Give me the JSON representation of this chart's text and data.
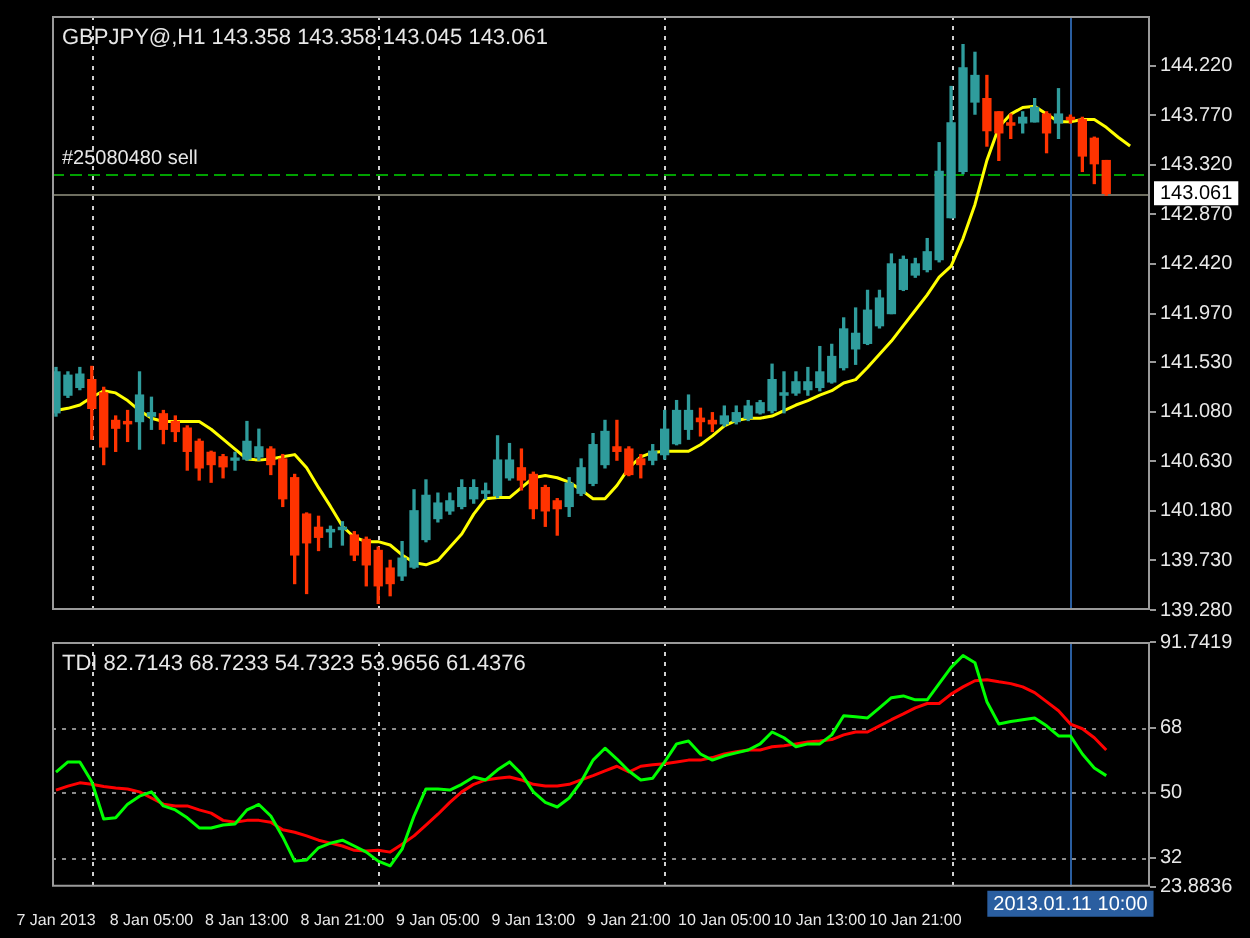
{
  "chart_data": [
    {
      "type": "candlestick",
      "title": "GBPJPY@,H1 143.358 143.358 143.045 143.061",
      "tick_labels": "y",
      "x": [
        "2013-01-07T21:00",
        "2013-01-07T22:00",
        "2013-01-07T23:00",
        "2013-01-08T00:00",
        "2013-01-08T01:00",
        "2013-01-08T02:00",
        "2013-01-08T03:00",
        "2013-01-08T04:00",
        "2013-01-08T05:00",
        "2013-01-08T06:00",
        "2013-01-08T07:00",
        "2013-01-08T08:00",
        "2013-01-08T09:00",
        "2013-01-08T10:00",
        "2013-01-08T11:00",
        "2013-01-08T12:00",
        "2013-01-08T13:00",
        "2013-01-08T14:00",
        "2013-01-08T15:00",
        "2013-01-08T16:00",
        "2013-01-08T17:00",
        "2013-01-08T18:00",
        "2013-01-08T19:00",
        "2013-01-08T20:00",
        "2013-01-08T21:00",
        "2013-01-08T22:00",
        "2013-01-08T23:00",
        "2013-01-09T00:00",
        "2013-01-09T01:00",
        "2013-01-09T02:00",
        "2013-01-09T03:00",
        "2013-01-09T04:00",
        "2013-01-09T05:00",
        "2013-01-09T06:00",
        "2013-01-09T07:00",
        "2013-01-09T08:00",
        "2013-01-09T09:00",
        "2013-01-09T10:00",
        "2013-01-09T11:00",
        "2013-01-09T12:00",
        "2013-01-09T13:00",
        "2013-01-09T14:00",
        "2013-01-09T15:00",
        "2013-01-09T16:00",
        "2013-01-09T17:00",
        "2013-01-09T18:00",
        "2013-01-09T19:00",
        "2013-01-09T20:00",
        "2013-01-09T21:00",
        "2013-01-09T22:00",
        "2013-01-09T23:00",
        "2013-01-10T00:00",
        "2013-01-10T01:00",
        "2013-01-10T02:00",
        "2013-01-10T03:00",
        "2013-01-10T04:00",
        "2013-01-10T05:00",
        "2013-01-10T06:00",
        "2013-01-10T07:00",
        "2013-01-10T08:00",
        "2013-01-10T09:00",
        "2013-01-10T10:00",
        "2013-01-10T11:00",
        "2013-01-10T12:00",
        "2013-01-10T13:00",
        "2013-01-10T14:00",
        "2013-01-10T15:00",
        "2013-01-10T16:00",
        "2013-01-10T17:00",
        "2013-01-10T18:00",
        "2013-01-10T19:00",
        "2013-01-10T20:00",
        "2013-01-10T21:00",
        "2013-01-10T22:00",
        "2013-01-10T23:00",
        "2013-01-11T00:00",
        "2013-01-11T01:00",
        "2013-01-11T02:00",
        "2013-01-11T03:00",
        "2013-01-11T04:00",
        "2013-01-11T05:00",
        "2013-01-11T06:00",
        "2013-01-11T07:00",
        "2013-01-11T08:00",
        "2013-01-11T09:00",
        "2013-01-11T10:00",
        "2013-01-11T11:00",
        "2013-01-11T12:00",
        "2013-01-11T13:00"
      ],
      "xlim": [
        "2013-01-07T20:40",
        "2013-01-11T16:40"
      ],
      "ylim": [
        139.28,
        144.67
      ],
      "yticks": [
        {
          "value": 139.28,
          "label": "139.280"
        },
        {
          "value": 139.73,
          "label": "139.730"
        },
        {
          "value": 140.18,
          "label": "140.180"
        },
        {
          "value": 140.63,
          "label": "140.630"
        },
        {
          "value": 141.08,
          "label": "141.080"
        },
        {
          "value": 141.53,
          "label": "141.530"
        },
        {
          "value": 141.97,
          "label": "141.970"
        },
        {
          "value": 142.42,
          "label": "142.420"
        },
        {
          "value": 142.87,
          "label": "142.870"
        },
        {
          "value": 143.32,
          "label": "143.320"
        },
        {
          "value": 143.77,
          "label": "143.770"
        },
        {
          "value": 144.22,
          "label": "144.220"
        }
      ],
      "ohlc": [
        [
          141.07,
          141.48,
          141.04,
          141.44
        ],
        [
          141.23,
          141.44,
          141.21,
          141.41
        ],
        [
          141.3,
          141.48,
          141.28,
          141.42
        ],
        [
          141.37,
          141.49,
          140.83,
          141.11
        ],
        [
          141.25,
          141.3,
          140.6,
          140.76
        ],
        [
          141.0,
          141.04,
          140.72,
          140.93
        ],
        [
          140.99,
          141.09,
          140.81,
          140.97
        ],
        [
          140.99,
          141.44,
          140.74,
          141.23
        ],
        [
          141.04,
          141.21,
          140.92,
          141.07
        ],
        [
          141.06,
          141.09,
          140.79,
          140.92
        ],
        [
          140.99,
          141.04,
          140.81,
          140.9
        ],
        [
          140.93,
          140.95,
          140.55,
          140.72
        ],
        [
          140.81,
          140.83,
          140.46,
          140.57
        ],
        [
          140.71,
          140.72,
          140.44,
          140.6
        ],
        [
          140.67,
          140.69,
          140.48,
          140.58
        ],
        [
          140.64,
          140.71,
          140.55,
          140.65
        ],
        [
          140.65,
          140.99,
          140.64,
          140.81
        ],
        [
          140.67,
          140.92,
          140.64,
          140.76
        ],
        [
          140.74,
          140.76,
          140.51,
          140.6
        ],
        [
          140.65,
          140.69,
          140.22,
          140.29
        ],
        [
          140.48,
          140.51,
          139.52,
          139.78
        ],
        [
          140.15,
          140.16,
          139.43,
          139.89
        ],
        [
          140.03,
          140.13,
          139.82,
          139.94
        ],
        [
          139.99,
          140.04,
          139.85,
          140.01
        ],
        [
          140.01,
          140.08,
          139.87,
          140.03
        ],
        [
          139.96,
          139.99,
          139.73,
          139.78
        ],
        [
          139.92,
          139.94,
          139.5,
          139.69
        ],
        [
          139.82,
          139.85,
          139.34,
          139.5
        ],
        [
          139.66,
          139.73,
          139.41,
          139.52
        ],
        [
          139.59,
          139.9,
          139.55,
          139.75
        ],
        [
          139.67,
          140.37,
          139.66,
          140.18
        ],
        [
          139.92,
          140.46,
          139.9,
          140.32
        ],
        [
          140.11,
          140.34,
          140.08,
          140.25
        ],
        [
          140.18,
          140.34,
          140.15,
          140.27
        ],
        [
          140.22,
          140.46,
          140.2,
          140.39
        ],
        [
          140.29,
          140.46,
          140.25,
          140.39
        ],
        [
          140.34,
          140.43,
          140.29,
          140.36
        ],
        [
          140.32,
          140.86,
          140.3,
          140.64
        ],
        [
          140.48,
          140.79,
          140.46,
          140.64
        ],
        [
          140.57,
          140.74,
          140.37,
          140.46
        ],
        [
          140.51,
          140.53,
          140.11,
          140.2
        ],
        [
          140.39,
          140.41,
          140.04,
          140.18
        ],
        [
          140.27,
          140.29,
          139.96,
          140.2
        ],
        [
          140.22,
          140.48,
          140.13,
          140.43
        ],
        [
          140.34,
          140.65,
          140.32,
          140.57
        ],
        [
          140.43,
          140.88,
          140.41,
          140.78
        ],
        [
          140.6,
          141.0,
          140.57,
          140.9
        ],
        [
          140.76,
          141.0,
          140.64,
          140.72
        ],
        [
          140.74,
          140.76,
          140.5,
          140.51
        ],
        [
          140.65,
          140.69,
          140.48,
          140.6
        ],
        [
          140.64,
          140.78,
          140.6,
          140.72
        ],
        [
          140.69,
          141.09,
          140.65,
          140.92
        ],
        [
          140.79,
          141.18,
          140.78,
          141.09
        ],
        [
          140.92,
          141.23,
          140.83,
          141.09
        ],
        [
          141.02,
          141.11,
          140.86,
          140.99
        ],
        [
          141.0,
          141.07,
          140.9,
          140.97
        ],
        [
          140.97,
          141.13,
          140.95,
          141.04
        ],
        [
          140.99,
          141.13,
          140.97,
          141.07
        ],
        [
          141.02,
          141.18,
          141.0,
          141.13
        ],
        [
          141.07,
          141.18,
          141.06,
          141.16
        ],
        [
          141.09,
          141.51,
          141.07,
          141.37
        ],
        [
          141.23,
          141.44,
          141.07,
          141.25
        ],
        [
          141.25,
          141.44,
          141.23,
          141.35
        ],
        [
          141.28,
          141.48,
          141.23,
          141.35
        ],
        [
          141.3,
          141.67,
          141.27,
          141.44
        ],
        [
          141.35,
          141.69,
          141.34,
          141.58
        ],
        [
          141.48,
          141.93,
          141.46,
          141.83
        ],
        [
          141.65,
          142.02,
          141.51,
          141.79
        ],
        [
          141.7,
          142.18,
          141.69,
          142.0
        ],
        [
          141.86,
          142.18,
          141.84,
          142.11
        ],
        [
          141.97,
          142.51,
          141.97,
          142.42
        ],
        [
          142.19,
          142.49,
          142.18,
          142.46
        ],
        [
          142.32,
          142.47,
          142.3,
          142.42
        ],
        [
          142.37,
          142.65,
          142.35,
          142.53
        ],
        [
          142.46,
          143.52,
          142.44,
          143.26
        ],
        [
          142.84,
          144.03,
          142.84,
          143.7
        ],
        [
          143.26,
          144.41,
          143.24,
          144.2
        ],
        [
          143.89,
          144.34,
          143.78,
          144.13
        ],
        [
          143.92,
          144.13,
          143.49,
          143.63
        ],
        [
          143.8,
          143.8,
          143.36,
          143.61
        ],
        [
          143.7,
          143.78,
          143.56,
          143.68
        ],
        [
          143.7,
          143.8,
          143.61,
          143.75
        ],
        [
          143.71,
          143.92,
          143.71,
          143.84
        ],
        [
          143.78,
          143.8,
          143.43,
          143.61
        ],
        [
          143.7,
          144.01,
          143.56,
          143.78
        ],
        [
          143.75,
          143.77,
          143.7,
          143.73
        ],
        [
          143.73,
          143.75,
          143.26,
          143.4
        ],
        [
          143.56,
          143.57,
          143.15,
          143.33
        ],
        [
          143.358,
          143.358,
          143.045,
          143.061
        ]
      ],
      "colors": [
        "#2f9c9c",
        "#2f9c9c",
        "#2f9c9c",
        "#ff3300",
        "#ff3300",
        "#ff3300",
        "#ff3300",
        "#2f9c9c",
        "#2f9c9c",
        "#ff3300",
        "#ff3300",
        "#ff3300",
        "#ff3300",
        "#ff3300",
        "#ff3300",
        "#2f9c9c",
        "#2f9c9c",
        "#2f9c9c",
        "#ff3300",
        "#ff3300",
        "#ff3300",
        "#ff3300",
        "#ff3300",
        "#2f9c9c",
        "#2f9c9c",
        "#ff3300",
        "#ff3300",
        "#ff3300",
        "#ff3300",
        "#2f9c9c",
        "#2f9c9c",
        "#2f9c9c",
        "#2f9c9c",
        "#2f9c9c",
        "#2f9c9c",
        "#2f9c9c",
        "#2f9c9c",
        "#2f9c9c",
        "#2f9c9c",
        "#ff3300",
        "#ff3300",
        "#ff3300",
        "#ff3300",
        "#2f9c9c",
        "#2f9c9c",
        "#2f9c9c",
        "#2f9c9c",
        "#ff3300",
        "#ff3300",
        "#ff3300",
        "#2f9c9c",
        "#2f9c9c",
        "#2f9c9c",
        "#2f9c9c",
        "#ff3300",
        "#ff3300",
        "#2f9c9c",
        "#2f9c9c",
        "#2f9c9c",
        "#2f9c9c",
        "#2f9c9c",
        "#2f9c9c",
        "#2f9c9c",
        "#2f9c9c",
        "#2f9c9c",
        "#2f9c9c",
        "#2f9c9c",
        "#2f9c9c",
        "#2f9c9c",
        "#2f9c9c",
        "#2f9c9c",
        "#2f9c9c",
        "#2f9c9c",
        "#2f9c9c",
        "#2f9c9c",
        "#2f9c9c",
        "#2f9c9c",
        "#2f9c9c",
        "#ff3300",
        "#ff3300",
        "#ff3300",
        "#2f9c9c",
        "#2f9c9c",
        "#ff3300",
        "#2f9c9c",
        "#ff3300",
        "#ff3300",
        "#ff3300",
        "#ff3300"
      ],
      "series": [
        {
          "type": "line",
          "color": "#ffff00",
          "x": [
            "2013-01-07T21:00",
            "2013-01-07T22:00",
            "2013-01-07T23:00",
            "2013-01-08T00:00",
            "2013-01-08T01:00",
            "2013-01-08T02:00",
            "2013-01-08T03:00",
            "2013-01-08T04:00",
            "2013-01-08T05:00",
            "2013-01-08T06:00",
            "2013-01-08T07:00",
            "2013-01-08T08:00",
            "2013-01-08T09:00",
            "2013-01-08T10:00",
            "2013-01-08T11:00",
            "2013-01-08T12:00",
            "2013-01-08T13:00",
            "2013-01-08T14:00",
            "2013-01-08T15:00",
            "2013-01-08T16:00",
            "2013-01-08T17:00",
            "2013-01-08T18:00",
            "2013-01-08T19:00",
            "2013-01-08T20:00",
            "2013-01-08T21:00",
            "2013-01-08T22:00",
            "2013-01-08T23:00",
            "2013-01-09T00:00",
            "2013-01-09T01:00",
            "2013-01-09T02:00",
            "2013-01-09T03:00",
            "2013-01-09T04:00",
            "2013-01-09T05:00",
            "2013-01-09T06:00",
            "2013-01-09T07:00",
            "2013-01-09T08:00",
            "2013-01-09T09:00",
            "2013-01-09T10:00",
            "2013-01-09T11:00",
            "2013-01-09T12:00",
            "2013-01-09T13:00",
            "2013-01-09T14:00",
            "2013-01-09T15:00",
            "2013-01-09T16:00",
            "2013-01-09T17:00",
            "2013-01-09T18:00",
            "2013-01-09T19:00",
            "2013-01-09T20:00",
            "2013-01-09T21:00",
            "2013-01-09T22:00",
            "2013-01-09T23:00",
            "2013-01-10T00:00",
            "2013-01-10T01:00",
            "2013-01-10T02:00",
            "2013-01-10T03:00",
            "2013-01-10T04:00",
            "2013-01-10T05:00",
            "2013-01-10T06:00",
            "2013-01-10T07:00",
            "2013-01-10T08:00",
            "2013-01-10T09:00",
            "2013-01-10T10:00",
            "2013-01-10T11:00",
            "2013-01-10T12:00",
            "2013-01-10T13:00",
            "2013-01-10T14:00",
            "2013-01-10T15:00",
            "2013-01-10T16:00",
            "2013-01-10T17:00",
            "2013-01-10T18:00",
            "2013-01-10T19:00",
            "2013-01-10T20:00",
            "2013-01-10T21:00",
            "2013-01-10T22:00",
            "2013-01-10T23:00",
            "2013-01-11T00:00",
            "2013-01-11T01:00",
            "2013-01-11T02:00",
            "2013-01-11T03:00",
            "2013-01-11T04:00",
            "2013-01-11T05:00",
            "2013-01-11T06:00",
            "2013-01-11T07:00",
            "2013-01-11T08:00",
            "2013-01-11T09:00",
            "2013-01-11T10:00",
            "2013-01-11T11:00",
            "2013-01-11T12:00",
            "2013-01-11T13:00",
            "2013-01-11T14:00",
            "2013-01-11T15:00"
          ],
          "values": [
            141.09,
            141.11,
            141.14,
            141.21,
            141.27,
            141.25,
            141.18,
            141.09,
            141.02,
            140.99,
            140.99,
            140.99,
            140.99,
            140.92,
            140.83,
            140.74,
            140.65,
            140.64,
            140.65,
            140.67,
            140.69,
            140.57,
            140.39,
            140.22,
            140.04,
            139.94,
            139.9,
            139.9,
            139.87,
            139.78,
            139.71,
            139.69,
            139.73,
            139.85,
            139.97,
            140.15,
            140.29,
            140.3,
            140.3,
            140.39,
            140.48,
            140.5,
            140.48,
            140.44,
            140.37,
            140.29,
            140.29,
            140.41,
            140.57,
            140.67,
            140.71,
            140.72,
            140.72,
            140.72,
            140.78,
            140.86,
            140.95,
            141.0,
            141.02,
            141.02,
            141.04,
            141.09,
            141.14,
            141.18,
            141.23,
            141.27,
            141.34,
            141.37,
            141.48,
            141.6,
            141.72,
            141.86,
            142.0,
            142.14,
            142.3,
            142.4,
            142.65,
            142.96,
            143.36,
            143.66,
            143.78,
            143.84,
            143.85,
            143.78,
            143.71,
            143.71,
            143.73,
            143.73,
            143.66,
            143.57,
            143.49
          ]
        }
      ],
      "ref_lines": [
        {
          "axis": "y",
          "value": 143.24,
          "label": "#25080480 sell",
          "color": "#00a000",
          "line_style": "dashed"
        },
        {
          "axis": "y",
          "value": 143.061,
          "label": "143.061",
          "color": "#6e6e60",
          "line_style": "solid"
        },
        {
          "axis": "x",
          "value": "2013-01-08T00:00",
          "color": "#d0d0d0",
          "line_style": "dotted"
        },
        {
          "axis": "x",
          "value": "2013-01-09T00:00",
          "color": "#d0d0d0",
          "line_style": "dotted"
        },
        {
          "axis": "x",
          "value": "2013-01-10T00:00",
          "color": "#d0d0d0",
          "line_style": "dotted"
        },
        {
          "axis": "x",
          "value": "2013-01-11T00:00",
          "color": "#d0d0d0",
          "line_style": "dotted"
        },
        {
          "axis": "x",
          "value": "2013-01-11T10:00",
          "color": "#2a5ea0",
          "line_style": "solid"
        }
      ]
    },
    {
      "type": "line",
      "title": "TDI 82.7143 68.7233 54.7323 53.9656 61.4376",
      "x": [
        "2013-01-07T21:00",
        "2013-01-07T22:00",
        "2013-01-07T23:00",
        "2013-01-08T00:00",
        "2013-01-08T01:00",
        "2013-01-08T02:00",
        "2013-01-08T03:00",
        "2013-01-08T04:00",
        "2013-01-08T05:00",
        "2013-01-08T06:00",
        "2013-01-08T07:00",
        "2013-01-08T08:00",
        "2013-01-08T09:00",
        "2013-01-08T10:00",
        "2013-01-08T11:00",
        "2013-01-08T12:00",
        "2013-01-08T13:00",
        "2013-01-08T14:00",
        "2013-01-08T15:00",
        "2013-01-08T16:00",
        "2013-01-08T17:00",
        "2013-01-08T18:00",
        "2013-01-08T19:00",
        "2013-01-08T20:00",
        "2013-01-08T21:00",
        "2013-01-08T22:00",
        "2013-01-08T23:00",
        "2013-01-09T00:00",
        "2013-01-09T01:00",
        "2013-01-09T02:00",
        "2013-01-09T03:00",
        "2013-01-09T04:00",
        "2013-01-09T05:00",
        "2013-01-09T06:00",
        "2013-01-09T07:00",
        "2013-01-09T08:00",
        "2013-01-09T09:00",
        "2013-01-09T10:00",
        "2013-01-09T11:00",
        "2013-01-09T12:00",
        "2013-01-09T13:00",
        "2013-01-09T14:00",
        "2013-01-09T15:00",
        "2013-01-09T16:00",
        "2013-01-09T17:00",
        "2013-01-09T18:00",
        "2013-01-09T19:00",
        "2013-01-09T20:00",
        "2013-01-09T21:00",
        "2013-01-09T22:00",
        "2013-01-09T23:00",
        "2013-01-10T00:00",
        "2013-01-10T01:00",
        "2013-01-10T02:00",
        "2013-01-10T03:00",
        "2013-01-10T04:00",
        "2013-01-10T05:00",
        "2013-01-10T06:00",
        "2013-01-10T07:00",
        "2013-01-10T08:00",
        "2013-01-10T09:00",
        "2013-01-10T10:00",
        "2013-01-10T11:00",
        "2013-01-10T12:00",
        "2013-01-10T13:00",
        "2013-01-10T14:00",
        "2013-01-10T15:00",
        "2013-01-10T16:00",
        "2013-01-10T17:00",
        "2013-01-10T18:00",
        "2013-01-10T19:00",
        "2013-01-10T20:00",
        "2013-01-10T21:00",
        "2013-01-10T22:00",
        "2013-01-10T23:00",
        "2013-01-11T00:00",
        "2013-01-11T01:00",
        "2013-01-11T02:00",
        "2013-01-11T03:00",
        "2013-01-11T04:00",
        "2013-01-11T05:00",
        "2013-01-11T06:00",
        "2013-01-11T07:00",
        "2013-01-11T08:00",
        "2013-01-11T09:00",
        "2013-01-11T10:00",
        "2013-01-11T11:00",
        "2013-01-11T12:00",
        "2013-01-11T13:00"
      ],
      "xlim": [
        "2013-01-07T20:40",
        "2013-01-11T16:40"
      ],
      "xticks": [
        {
          "value": "2013-01-07T21:00",
          "label": "7 Jan 2013"
        },
        {
          "value": "2013-01-08T05:00",
          "label": "8 Jan 05:00"
        },
        {
          "value": "2013-01-08T13:00",
          "label": "8 Jan 13:00"
        },
        {
          "value": "2013-01-08T21:00",
          "label": "8 Jan 21:00"
        },
        {
          "value": "2013-01-09T05:00",
          "label": "9 Jan 05:00"
        },
        {
          "value": "2013-01-09T13:00",
          "label": "9 Jan 13:00"
        },
        {
          "value": "2013-01-09T21:00",
          "label": "9 Jan 21:00"
        },
        {
          "value": "2013-01-10T05:00",
          "label": "10 Jan 05:00"
        },
        {
          "value": "2013-01-10T13:00",
          "label": "10 Jan 13:00"
        },
        {
          "value": "2013-01-10T21:00",
          "label": "10 Jan 21:00"
        }
      ],
      "ylim": [
        23.8836,
        91.7419
      ],
      "yticks": [
        23.8836,
        32,
        50,
        68,
        91.7419
      ],
      "series": [
        {
          "color": "#00ff00",
          "values": [
            55.7,
            58.5,
            58.5,
            53.0,
            42.7,
            43.0,
            46.8,
            49.0,
            50.2,
            46.3,
            45.2,
            43.0,
            40.2,
            40.2,
            41.0,
            41.3,
            45.2,
            46.7,
            43.5,
            37.7,
            31.0,
            31.3,
            34.7,
            36.0,
            36.8,
            35.2,
            33.5,
            31.0,
            29.7,
            34.3,
            43.5,
            51.0,
            51.0,
            50.7,
            52.3,
            54.3,
            53.5,
            56.3,
            58.5,
            55.2,
            50.2,
            47.3,
            46.0,
            48.5,
            53.0,
            59.0,
            62.3,
            59.3,
            56.0,
            53.5,
            54.0,
            58.5,
            63.5,
            64.3,
            60.7,
            59.0,
            60.2,
            61.0,
            61.8,
            63.5,
            66.8,
            65.2,
            62.7,
            63.5,
            63.5,
            66.0,
            71.3,
            71.0,
            70.7,
            73.5,
            76.3,
            76.8,
            75.7,
            75.7,
            80.2,
            84.7,
            88.0,
            86.0,
            75.2,
            69.0,
            69.7,
            70.2,
            70.7,
            68.5,
            65.7,
            65.7,
            60.7,
            56.8,
            54.7
          ]
        },
        {
          "color": "#ff0000",
          "values": [
            50.7,
            51.8,
            52.7,
            52.3,
            51.7,
            51.3,
            51.0,
            50.2,
            48.5,
            46.8,
            46.3,
            46.3,
            45.2,
            44.3,
            42.3,
            41.8,
            42.3,
            42.3,
            41.8,
            39.7,
            39.0,
            38.0,
            36.8,
            36.0,
            35.2,
            34.0,
            33.8,
            34.0,
            33.5,
            35.7,
            38.0,
            41.0,
            44.0,
            47.3,
            50.2,
            52.3,
            53.5,
            54.0,
            54.3,
            53.5,
            52.3,
            51.8,
            51.8,
            52.3,
            53.5,
            54.7,
            56.0,
            57.3,
            55.7,
            57.3,
            57.7,
            58.0,
            58.5,
            59.0,
            59.0,
            59.7,
            60.7,
            61.3,
            61.8,
            61.8,
            62.7,
            63.0,
            63.5,
            64.0,
            64.3,
            64.7,
            66.0,
            66.8,
            66.8,
            68.5,
            70.2,
            71.8,
            73.5,
            74.7,
            74.7,
            77.3,
            79.3,
            81.0,
            81.3,
            80.7,
            80.2,
            79.3,
            77.7,
            75.2,
            72.7,
            69.0,
            67.7,
            65.2,
            61.8
          ]
        }
      ],
      "ref_lines": [
        {
          "axis": "y",
          "value": 32,
          "color": "#8a8a8a",
          "line_style": "dotted"
        },
        {
          "axis": "y",
          "value": 50,
          "color": "#8a8a8a",
          "line_style": "dotted"
        },
        {
          "axis": "y",
          "value": 68,
          "color": "#8a8a8a",
          "line_style": "dotted"
        },
        {
          "axis": "x",
          "value": "2013-01-08T00:00",
          "color": "#d0d0d0",
          "line_style": "dotted"
        },
        {
          "axis": "x",
          "value": "2013-01-09T00:00",
          "color": "#d0d0d0",
          "line_style": "dotted"
        },
        {
          "axis": "x",
          "value": "2013-01-10T00:00",
          "color": "#d0d0d0",
          "line_style": "dotted"
        },
        {
          "axis": "x",
          "value": "2013-01-11T00:00",
          "color": "#d0d0d0",
          "line_style": "dotted"
        },
        {
          "axis": "x",
          "value": "2013-01-11T10:00",
          "label": "2013.01.11 10:00",
          "color": "#2a5ea0",
          "line_style": "solid"
        }
      ]
    }
  ]
}
